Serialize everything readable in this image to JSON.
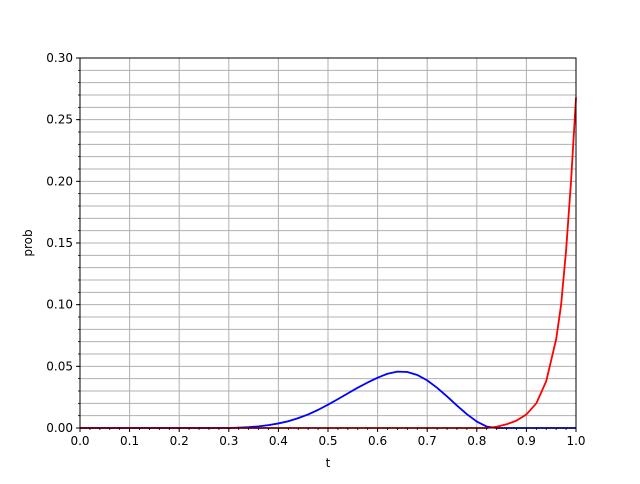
{
  "chart_data": {
    "type": "line",
    "title": "",
    "xlabel": "t",
    "ylabel": "prob",
    "xlim": [
      0.0,
      1.0
    ],
    "ylim": [
      0.0,
      0.3
    ],
    "xticks": [
      "0.0",
      "0.1",
      "0.2",
      "0.3",
      "0.4",
      "0.5",
      "0.6",
      "0.7",
      "0.8",
      "0.9",
      "1.0"
    ],
    "yticks": [
      "0.00",
      "0.05",
      "0.10",
      "0.15",
      "0.20",
      "0.25",
      "0.30"
    ],
    "grid": true,
    "minor_y_step": 0.01,
    "series": [
      {
        "color": "#0000ff",
        "x": [
          0.0,
          0.1,
          0.2,
          0.3,
          0.32,
          0.34,
          0.36,
          0.38,
          0.4,
          0.42,
          0.44,
          0.46,
          0.48,
          0.5,
          0.52,
          0.54,
          0.56,
          0.58,
          0.6,
          0.62,
          0.64,
          0.66,
          0.68,
          0.7,
          0.72,
          0.74,
          0.76,
          0.78,
          0.8,
          0.82,
          0.84,
          0.86,
          0.88,
          0.9,
          0.92,
          0.94,
          0.96,
          0.98,
          1.0
        ],
        "y": [
          0.0,
          0.0,
          0.0,
          0.0,
          0.0003,
          0.0007,
          0.0013,
          0.0023,
          0.0037,
          0.0055,
          0.008,
          0.011,
          0.0147,
          0.0189,
          0.0234,
          0.0281,
          0.0327,
          0.0369,
          0.0408,
          0.044,
          0.0457,
          0.0454,
          0.043,
          0.0386,
          0.0326,
          0.0256,
          0.0182,
          0.0112,
          0.0052,
          0.0012,
          0.0,
          0.0,
          0.0,
          0.0,
          0.0,
          0.0,
          0.0,
          0.0,
          0.0
        ]
      },
      {
        "color": "#ff0000",
        "x": [
          0.0,
          0.1,
          0.2,
          0.3,
          0.4,
          0.5,
          0.6,
          0.7,
          0.8,
          0.82,
          0.84,
          0.86,
          0.88,
          0.9,
          0.92,
          0.94,
          0.96,
          0.97,
          0.98,
          0.99,
          1.0
        ],
        "y": [
          0.0,
          0.0,
          0.0,
          0.0,
          0.0,
          0.0,
          0.0,
          0.0,
          0.0,
          0.0,
          0.001,
          0.003,
          0.006,
          0.011,
          0.02,
          0.038,
          0.072,
          0.1,
          0.144,
          0.2,
          0.268
        ]
      }
    ]
  }
}
